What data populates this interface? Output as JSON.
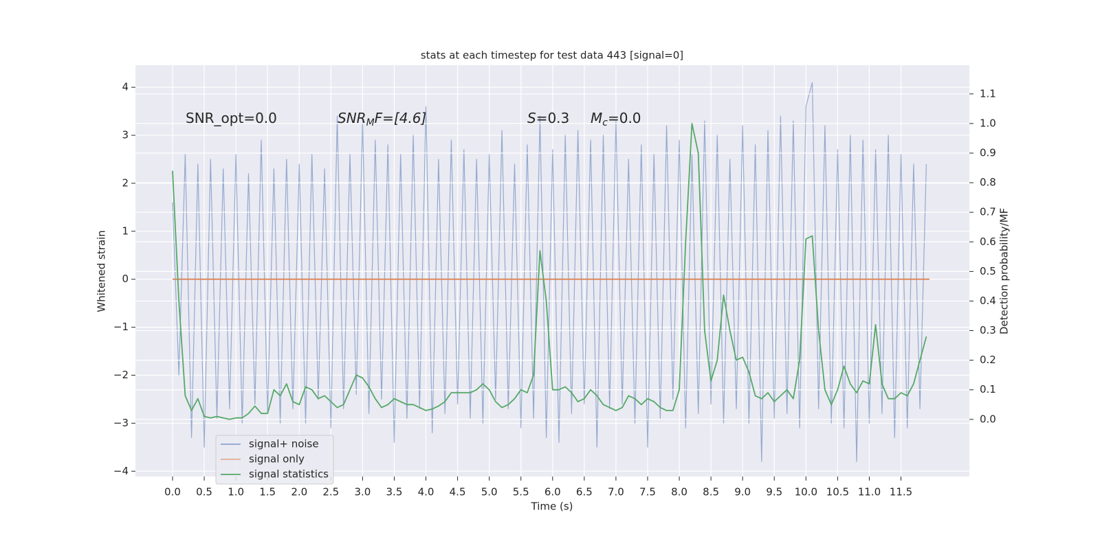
{
  "chart_data": {
    "type": "line",
    "title": "stats at each timestep for test data 443 [signal=0]",
    "xlabel": "Time (s)",
    "ylabel": "Whitened strain",
    "y2label": "Detection probability/MF",
    "annotations": [
      [
        "SNR_opt=0.0"
      ],
      [
        "SNR",
        "M",
        "F=[4.6]"
      ],
      [
        "S",
        "=0.3"
      ],
      [
        "M",
        "c",
        "=0.0"
      ]
    ],
    "xlim": [
      -0.586,
      12.58
    ],
    "ylim": [
      -4.11,
      4.46
    ],
    "y2lim": [
      -0.193,
      1.197
    ],
    "xticks": [
      {
        "value": 0,
        "label": "0.0"
      },
      0.5,
      {
        "value": 1,
        "label": "1.0"
      },
      1.5,
      {
        "value": 2,
        "label": "2.0"
      },
      2.5,
      {
        "value": 3,
        "label": "3.0"
      },
      3.5,
      {
        "value": 4,
        "label": "4.0"
      },
      4.5,
      {
        "value": 5,
        "label": "5.0"
      },
      5.5,
      {
        "value": 6,
        "label": "6.0"
      },
      6.5,
      {
        "value": 7,
        "label": "7.0"
      },
      7.5,
      {
        "value": 8,
        "label": "8.0"
      },
      8.5,
      {
        "value": 9,
        "label": "9.0"
      },
      9.5,
      {
        "value": 10,
        "label": "10.0"
      },
      10.5,
      {
        "value": 11,
        "label": "11.0"
      },
      11.5
    ],
    "yticks": [
      {
        "value": -4,
        "label": "−4"
      },
      {
        "value": -3,
        "label": "−3"
      },
      {
        "value": -2,
        "label": "−2"
      },
      {
        "value": -1,
        "label": "−1"
      },
      0,
      1,
      2,
      3,
      4
    ],
    "y2ticks": [
      {
        "value": 0,
        "label": "0.0"
      },
      0.1,
      0.2,
      0.3,
      0.4,
      0.5,
      0.6,
      0.7,
      0.8,
      0.9,
      {
        "value": 1,
        "label": "1.0"
      },
      1.1
    ],
    "grid": true,
    "x": [
      0.0,
      0.1,
      0.2,
      0.3,
      0.4,
      0.5,
      0.6,
      0.7,
      0.8,
      0.9,
      1.0,
      1.1,
      1.2,
      1.3,
      1.4,
      1.5,
      1.6,
      1.7,
      1.8,
      1.9,
      2.0,
      2.1,
      2.2,
      2.3,
      2.4,
      2.5,
      2.6,
      2.7,
      2.8,
      2.9,
      3.0,
      3.1,
      3.2,
      3.3,
      3.4,
      3.5,
      3.6,
      3.7,
      3.8,
      3.9,
      4.0,
      4.1,
      4.2,
      4.3,
      4.4,
      4.5,
      4.6,
      4.7,
      4.8,
      4.9,
      5.0,
      5.1,
      5.2,
      5.3,
      5.4,
      5.5,
      5.6,
      5.7,
      5.8,
      5.9,
      6.0,
      6.1,
      6.2,
      6.3,
      6.4,
      6.5,
      6.6,
      6.7,
      6.8,
      6.9,
      7.0,
      7.1,
      7.2,
      7.3,
      7.4,
      7.5,
      7.6,
      7.7,
      7.8,
      7.9,
      8.0,
      8.1,
      8.2,
      8.3,
      8.4,
      8.5,
      8.6,
      8.7,
      8.8,
      8.9,
      9.0,
      9.1,
      9.2,
      9.3,
      9.4,
      9.5,
      9.6,
      9.7,
      9.8,
      9.9,
      10.0,
      10.1,
      10.2,
      10.3,
      10.4,
      10.5,
      10.6,
      10.7,
      10.8,
      10.9,
      11.0,
      11.1,
      11.2,
      11.3,
      11.4,
      11.5,
      11.6,
      11.7,
      11.8,
      11.9
    ],
    "series": [
      {
        "name": "signal+ noise",
        "color": "#4c72b0",
        "values": [
          1.6,
          -2.0,
          2.6,
          -3.3,
          2.4,
          -3.5,
          2.5,
          -2.9,
          2.3,
          -2.7,
          2.6,
          -3.0,
          2.2,
          -2.6,
          2.9,
          -2.8,
          2.3,
          -3.0,
          2.5,
          -2.7,
          2.4,
          -3.0,
          2.6,
          -2.5,
          2.3,
          -3.1,
          3.4,
          -2.7,
          2.6,
          -2.4,
          3.3,
          -2.8,
          2.9,
          -2.5,
          2.8,
          -3.4,
          2.6,
          -2.9,
          3.0,
          -2.7,
          3.6,
          -3.2,
          2.5,
          -2.8,
          2.9,
          -2.6,
          2.7,
          -2.9,
          2.5,
          -3.0,
          2.6,
          -2.5,
          3.1,
          -2.7,
          2.4,
          -3.1,
          2.8,
          -2.9,
          3.4,
          -3.3,
          2.7,
          -3.4,
          3.0,
          -2.8,
          3.1,
          -2.6,
          2.9,
          -3.5,
          3.0,
          -2.7,
          3.3,
          -2.6,
          2.5,
          -3.0,
          2.8,
          -3.5,
          2.6,
          -2.9,
          3.2,
          -2.5,
          2.9,
          -3.1,
          2.6,
          -2.8,
          3.3,
          -2.6,
          3.0,
          -3.0,
          2.5,
          -2.7,
          3.2,
          -3.0,
          2.8,
          -3.8,
          3.1,
          -2.9,
          3.4,
          -2.8,
          3.3,
          -3.1,
          3.6,
          4.1,
          -2.7,
          3.2,
          -3.0,
          2.7,
          -3.1,
          3.0,
          -3.8,
          2.9,
          -3.0,
          2.7,
          -2.8,
          3.0,
          -3.3,
          2.6,
          -3.1,
          2.4,
          -2.7,
          2.4
        ]
      },
      {
        "name": "signal only",
        "color": "#dd8452",
        "x": [
          0.0,
          11.95
        ],
        "values": [
          0,
          0
        ]
      },
      {
        "name": "signal statistics",
        "color": "#55a868",
        "axis": "y2",
        "values": [
          0.84,
          0.4,
          0.08,
          0.03,
          0.07,
          0.01,
          0.005,
          0.01,
          0.005,
          0.0,
          0.005,
          0.005,
          0.02,
          0.045,
          0.02,
          0.02,
          0.1,
          0.08,
          0.12,
          0.06,
          0.05,
          0.11,
          0.1,
          0.07,
          0.08,
          0.06,
          0.04,
          0.05,
          0.1,
          0.15,
          0.14,
          0.11,
          0.07,
          0.04,
          0.05,
          0.07,
          0.06,
          0.05,
          0.05,
          0.04,
          0.03,
          0.035,
          0.045,
          0.06,
          0.09,
          0.09,
          0.09,
          0.09,
          0.1,
          0.12,
          0.1,
          0.06,
          0.04,
          0.05,
          0.07,
          0.1,
          0.09,
          0.15,
          0.57,
          0.4,
          0.1,
          0.1,
          0.11,
          0.09,
          0.06,
          0.07,
          0.1,
          0.08,
          0.05,
          0.04,
          0.03,
          0.04,
          0.08,
          0.07,
          0.05,
          0.07,
          0.06,
          0.04,
          0.03,
          0.03,
          0.1,
          0.6,
          1.0,
          0.9,
          0.3,
          0.13,
          0.2,
          0.42,
          0.3,
          0.2,
          0.21,
          0.16,
          0.08,
          0.07,
          0.09,
          0.06,
          0.08,
          0.1,
          0.07,
          0.2,
          0.61,
          0.62,
          0.3,
          0.1,
          0.05,
          0.1,
          0.18,
          0.12,
          0.09,
          0.13,
          0.12,
          0.32,
          0.12,
          0.07,
          0.07,
          0.09,
          0.08,
          0.12,
          0.2,
          0.28
        ]
      }
    ]
  }
}
